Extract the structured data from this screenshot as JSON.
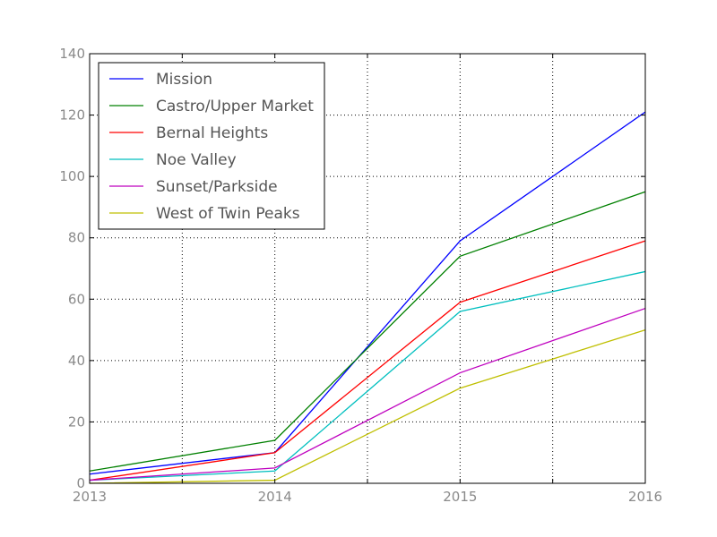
{
  "chart_data": {
    "type": "line",
    "x": [
      2013,
      2014,
      2015,
      2016
    ],
    "xlim": [
      2013,
      2016
    ],
    "ylim": [
      0,
      140
    ],
    "x_ticks": [
      2013,
      2014,
      2015,
      2016
    ],
    "y_ticks": [
      0,
      20,
      40,
      60,
      80,
      100,
      120,
      140
    ],
    "grid": true,
    "legend_position": "top-left",
    "series": [
      {
        "name": "Mission",
        "color": "#0000ff",
        "values": [
          3,
          10,
          79,
          121
        ]
      },
      {
        "name": "Castro/Upper Market",
        "color": "#008000",
        "values": [
          4,
          14,
          74,
          95
        ]
      },
      {
        "name": "Bernal Heights",
        "color": "#ff0000",
        "values": [
          1,
          10,
          59,
          79
        ]
      },
      {
        "name": "Noe Valley",
        "color": "#00bfbf",
        "values": [
          1,
          4,
          56,
          69
        ]
      },
      {
        "name": "Sunset/Parkside",
        "color": "#bf00bf",
        "values": [
          1,
          5,
          36,
          57
        ]
      },
      {
        "name": "West of Twin Peaks",
        "color": "#bfbf00",
        "values": [
          0,
          1,
          31,
          50
        ]
      }
    ]
  }
}
